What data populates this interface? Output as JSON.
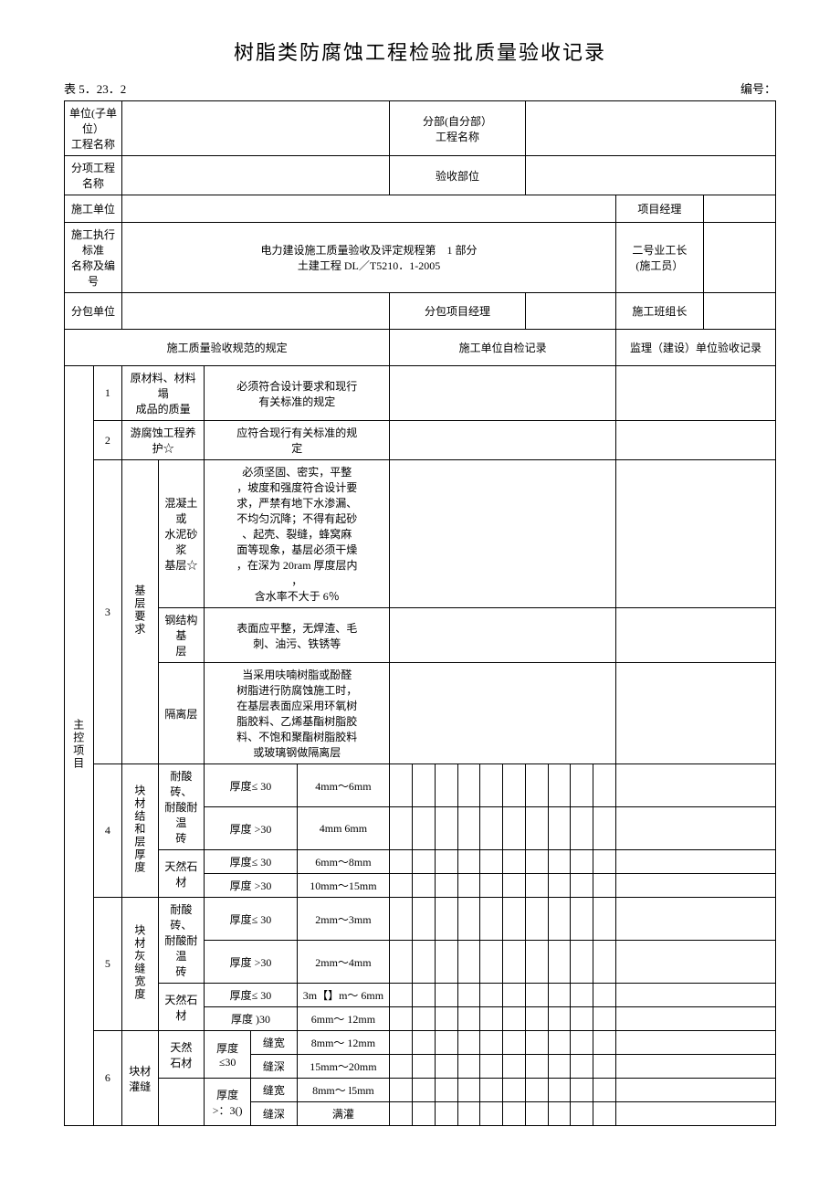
{
  "title": "树脂类防腐蚀工程检验批质量验收记录",
  "table_no": "表 5．23．2",
  "serial_label": "编号：",
  "header": {
    "unit_project": "单位(子单位）\n工程名称",
    "sub_project": "分部(自分部）\n工程名称",
    "item_project": "分项工程名称",
    "accept_dept": "验收部位",
    "constr_unit": "施工单位",
    "proj_mgr": "项目经理",
    "std_label": "施工执行标准\n名称及编号",
    "std_value": "电力建设施工质量验收及评定规程第　1 部分\n土建工程 DL／T5210．1-2005",
    "foreman": "二号业工长\n(施工员）",
    "sub_contract": "分包单位",
    "sub_mgr": "分包项目经理",
    "team_leader": "施工班组长",
    "spec_col": "施工质量验收规范的规定",
    "self_check": "施工单位自检记录",
    "supervise": "监理（建设）单位验收记录"
  },
  "main_label": "主控项目",
  "rows": {
    "r1_name": "原材料、材料塌\n成品的质量",
    "r1_req": "必须符合设计要求和现行\n有关标准的规定",
    "r2_name": "游腐蚀工程养\n护☆",
    "r2_req": "应符合现行有关标准的规\n定",
    "r3_group": "基层要求",
    "r3a_name": "混凝土或\n水泥砂浆\n基层☆",
    "r3a_req": "必须坚固、密实，平整\n，坡度和强度符合设计要\n求，严禁有地下水渗漏、\n不均匀沉降；不得有起砂\n、起壳、裂缝，蜂窝麻\n面等现象，基层必须干燥\n，在深为 20ram 厚度层内\n，\n含水率不大于 6％",
    "r3b_name": "钢结构基\n层",
    "r3b_req": "表面应平整，无焊渣、毛\n刺、油污、铁锈等",
    "r3c_name": "隔离层",
    "r3c_req": "当采用呋喃树脂或酚醛\n树脂进行防腐蚀施工时，\n在基层表面应采用环氧树\n脂胶料、乙烯基酯树脂胶\n料、不饱和聚酯树脂胶料\n或玻璃钢做隔离层",
    "r4_group": "块材结和层厚度",
    "r4_mat1": "耐酸砖、\n耐酸耐温\n砖",
    "r4_mat2": "天然石材",
    "r4_a": "厚度≤ 30",
    "r4_a_v": "4mm～6mm",
    "r4_b": "厚度 >30",
    "r4_b_v": "4mm 6mm",
    "r4_c": "厚度≤ 30",
    "r4_c_v": "6mm～8mm",
    "r4_d": "厚度 >30",
    "r4_d_v": "10mm～15mm",
    "r5_group": "块材灰缝宽度",
    "r5_mat1": "耐酸砖、\n耐酸耐温\n砖",
    "r5_mat2": "天然石材",
    "r5_a": "厚度≤ 30",
    "r5_a_v": "2mm～3mm",
    "r5_b": "厚度 >30",
    "r5_b_v": "2mm～4mm",
    "r5_c": "厚度≤ 30",
    "r5_c_v": "3m【】m～ 6mm",
    "r5_d": "厚度 )30",
    "r5_d_v": "6mm～ 12mm",
    "r6_group": "块材\n灌缝",
    "r6_mat1": "天然\n石材",
    "r6_t1": "厚度\n≤30",
    "r6_t2": "厚度\n>：3()",
    "r6_a": "缝宽",
    "r6_a_v": "8mm～ 12mm",
    "r6_b": "缝深",
    "r6_b_v": "15mm～20mm",
    "r6_c": "缝宽",
    "r6_c_v": "8mm～ l5mm",
    "r6_d": "缝深",
    "r6_d_v": "满灌"
  }
}
